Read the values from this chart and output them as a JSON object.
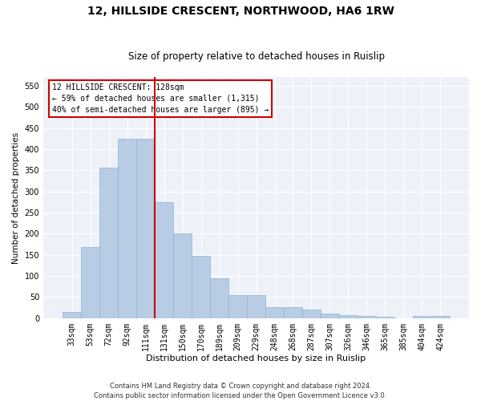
{
  "title": "12, HILLSIDE CRESCENT, NORTHWOOD, HA6 1RW",
  "subtitle": "Size of property relative to detached houses in Ruislip",
  "xlabel": "Distribution of detached houses by size in Ruislip",
  "ylabel": "Number of detached properties",
  "categories": [
    "33sqm",
    "53sqm",
    "72sqm",
    "92sqm",
    "111sqm",
    "131sqm",
    "150sqm",
    "170sqm",
    "189sqm",
    "209sqm",
    "229sqm",
    "248sqm",
    "268sqm",
    "287sqm",
    "307sqm",
    "326sqm",
    "346sqm",
    "365sqm",
    "385sqm",
    "404sqm",
    "424sqm"
  ],
  "values": [
    14,
    168,
    357,
    425,
    425,
    275,
    200,
    148,
    95,
    55,
    55,
    27,
    27,
    20,
    12,
    7,
    5,
    3,
    0,
    5,
    5
  ],
  "bar_color": "#b8cce4",
  "bar_edgecolor": "#8db3d9",
  "vline_x": 4.5,
  "vline_color": "#cc0000",
  "annotation_title": "12 HILLSIDE CRESCENT: 128sqm",
  "annotation_line1": "← 59% of detached houses are smaller (1,315)",
  "annotation_line2": "40% of semi-detached houses are larger (895) →",
  "annotation_box_edgecolor": "#cc0000",
  "ylim": [
    0,
    570
  ],
  "yticks": [
    0,
    50,
    100,
    150,
    200,
    250,
    300,
    350,
    400,
    450,
    500,
    550
  ],
  "bg_color": "#eef2f8",
  "grid_color": "#ffffff",
  "footer_line1": "Contains HM Land Registry data © Crown copyright and database right 2024.",
  "footer_line2": "Contains public sector information licensed under the Open Government Licence v3.0.",
  "title_fontsize": 10,
  "subtitle_fontsize": 8.5,
  "xlabel_fontsize": 8,
  "ylabel_fontsize": 7.5,
  "tick_fontsize": 7,
  "footer_fontsize": 6,
  "ann_fontsize": 7
}
